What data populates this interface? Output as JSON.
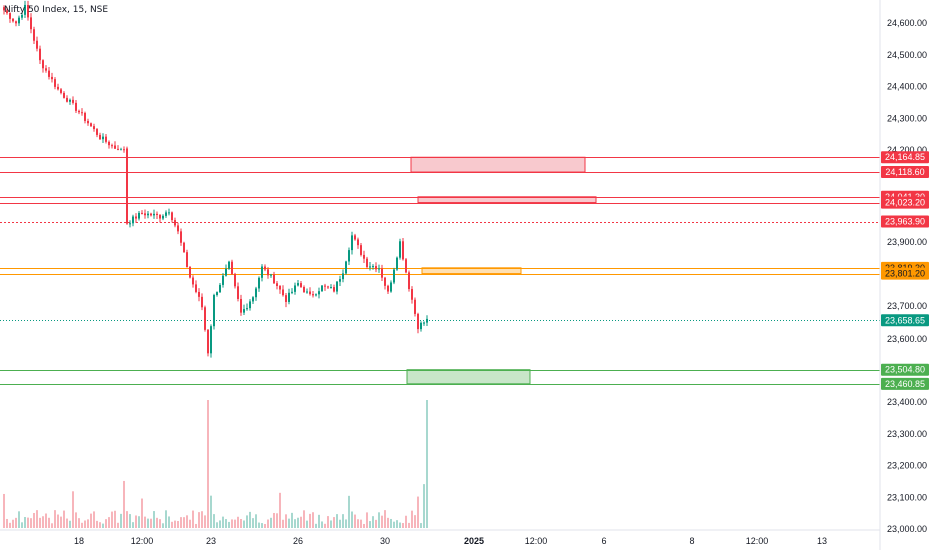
{
  "header": {
    "symbol_title": "Nifty 50 Index, 15, NSE"
  },
  "price_axis": {
    "ticks": [
      {
        "value": 24600,
        "label": "24,600.00"
      },
      {
        "value": 24500,
        "label": "24,500.00"
      },
      {
        "value": 24400,
        "label": "24,400.00"
      },
      {
        "value": 24300,
        "label": "24,300.00"
      },
      {
        "value": 24200,
        "label": "24,200.00"
      },
      {
        "value": 23900,
        "label": "23,900.00"
      },
      {
        "value": 23700,
        "label": "23,700.00"
      },
      {
        "value": 23600,
        "label": "23,600.00"
      },
      {
        "value": 23400,
        "label": "23,400.00"
      },
      {
        "value": 23300,
        "label": "23,300.00"
      },
      {
        "value": 23200,
        "label": "23,200.00"
      },
      {
        "value": 23100,
        "label": "23,100.00"
      },
      {
        "value": 23000,
        "label": "23,000.00"
      }
    ]
  },
  "time_axis": {
    "ticks": [
      {
        "label": "18",
        "bold": false
      },
      {
        "label": "12:00",
        "bold": false
      },
      {
        "label": "23",
        "bold": false
      },
      {
        "label": "26",
        "bold": false
      },
      {
        "label": "30",
        "bold": false
      },
      {
        "label": "2025",
        "bold": true
      },
      {
        "label": "12:00",
        "bold": false
      },
      {
        "label": "6",
        "bold": false
      },
      {
        "label": "8",
        "bold": false
      },
      {
        "label": "12:00",
        "bold": false
      },
      {
        "label": "13",
        "bold": false
      }
    ]
  },
  "levels": [
    {
      "value": 24164.85,
      "label": "24,164.85",
      "color": "#f23645",
      "style": "solid"
    },
    {
      "value": 24118.6,
      "label": "24,118.60",
      "color": "#f23645",
      "style": "solid"
    },
    {
      "value": 24041.3,
      "label": "24,041.30",
      "color": "#f23645",
      "style": "solid"
    },
    {
      "value": 24023.2,
      "label": "24,023.20",
      "color": "#f23645",
      "style": "solid"
    },
    {
      "value": 23963.9,
      "label": "23,963.90",
      "color": "#f23645",
      "style": "dotted"
    },
    {
      "value": 23819.3,
      "label": "23,819.30",
      "color": "#ff9800",
      "style": "solid"
    },
    {
      "value": 23801.2,
      "label": "23,801.20",
      "color": "#ff9800",
      "style": "solid"
    },
    {
      "value": 23658.65,
      "label": "23,658.65",
      "color": "#089981",
      "style": "current"
    },
    {
      "value": 23504.8,
      "label": "23,504.80",
      "color": "#4caf50",
      "style": "solid"
    },
    {
      "value": 23460.85,
      "label": "23,460.85",
      "color": "#4caf50",
      "style": "solid"
    }
  ],
  "zones": [
    {
      "top": 24164.85,
      "bottom": 24118.6,
      "color": "#f23645",
      "fill": "#f8c9ce"
    },
    {
      "top": 24041.3,
      "bottom": 24023.2,
      "color": "#f23645",
      "fill": "#f8c9ce"
    },
    {
      "top": 23819.3,
      "bottom": 23801.2,
      "color": "#ff9800",
      "fill": "#ffe0b2"
    },
    {
      "top": 23504.8,
      "bottom": 23460.85,
      "color": "#4caf50",
      "fill": "#c8e6c9"
    }
  ],
  "colors": {
    "up": "#089981",
    "down": "#f23645",
    "volume_up": "#a7d8cf",
    "volume_down": "#f7b5bb"
  },
  "chart_data": {
    "type": "candlestick",
    "title": "Nifty 50 Index, 15, NSE",
    "ylim": [
      23000,
      24680
    ],
    "close_path": [
      {
        "bar": 0,
        "price": 24640
      },
      {
        "bar": 4,
        "price": 24600
      },
      {
        "bar": 7,
        "price": 24650
      },
      {
        "bar": 12,
        "price": 24480
      },
      {
        "bar": 18,
        "price": 24390
      },
      {
        "bar": 25,
        "price": 24320
      },
      {
        "bar": 32,
        "price": 24240
      },
      {
        "bar": 38,
        "price": 24200
      },
      {
        "bar": 40,
        "price": 24195
      },
      {
        "bar": 41,
        "price": 23960
      },
      {
        "bar": 46,
        "price": 23990
      },
      {
        "bar": 52,
        "price": 23980
      },
      {
        "bar": 55,
        "price": 24000
      },
      {
        "bar": 58,
        "price": 23930
      },
      {
        "bar": 62,
        "price": 23790
      },
      {
        "bar": 66,
        "price": 23700
      },
      {
        "bar": 68,
        "price": 23560
      },
      {
        "bar": 70,
        "price": 23730
      },
      {
        "bar": 75,
        "price": 23830
      },
      {
        "bar": 79,
        "price": 23680
      },
      {
        "bar": 83,
        "price": 23730
      },
      {
        "bar": 86,
        "price": 23820
      },
      {
        "bar": 90,
        "price": 23780
      },
      {
        "bar": 94,
        "price": 23720
      },
      {
        "bar": 98,
        "price": 23770
      },
      {
        "bar": 102,
        "price": 23730
      },
      {
        "bar": 106,
        "price": 23760
      },
      {
        "bar": 110,
        "price": 23750
      },
      {
        "bar": 113,
        "price": 23810
      },
      {
        "bar": 116,
        "price": 23920
      },
      {
        "bar": 121,
        "price": 23830
      },
      {
        "bar": 125,
        "price": 23820
      },
      {
        "bar": 128,
        "price": 23740
      },
      {
        "bar": 132,
        "price": 23900
      },
      {
        "bar": 135,
        "price": 23760
      },
      {
        "bar": 138,
        "price": 23640
      },
      {
        "bar": 141,
        "price": 23658.65
      }
    ]
  }
}
